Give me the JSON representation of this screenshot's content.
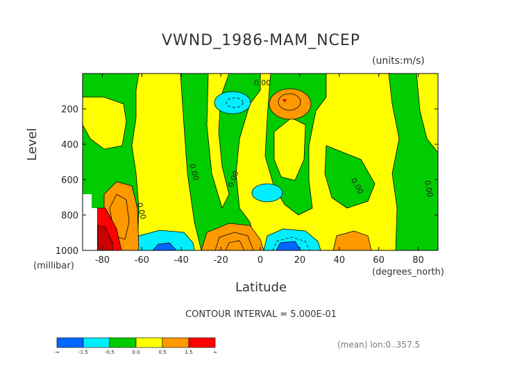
{
  "chart_data": {
    "type": "heatmap",
    "title": "VWND_1986-MAM_NCEP",
    "units_label": "(units:m/s)",
    "xlabel": "Latitude",
    "x_units": "(degrees_north)",
    "ylabel": "Level",
    "y_units": "(millibar)",
    "xlim": [
      -90,
      90
    ],
    "ylim": [
      1000,
      0
    ],
    "x_ticks": [
      "-80",
      "-60",
      "-40",
      "-20",
      "0",
      "20",
      "40",
      "60",
      "80"
    ],
    "y_ticks": [
      "200",
      "400",
      "600",
      "800",
      "1000"
    ],
    "contour_interval_text": "CONTOUR INTERVAL = 5.000E-01",
    "contour_labels": [
      "0.00",
      "0.00",
      "0.00",
      "0.00",
      "0.00",
      "0.00"
    ],
    "colorbar_labels": [
      "-∞",
      "-1.5",
      "-0.5",
      "0.0",
      "0.5",
      "1.5",
      "∞"
    ],
    "colorbar_colors": [
      "#0066ff",
      "#00eeff",
      "#00cc00",
      "#ffff00",
      "#ff9900",
      "#ff0000"
    ],
    "footer_text": "(mean) lon:0..357.5",
    "colors": {
      "yellow": "#ffff00",
      "green": "#00cc00",
      "cyan": "#00eeff",
      "blue": "#0066ff",
      "orange": "#ff9900",
      "red": "#ff0000",
      "darkred": "#cc0000"
    }
  }
}
